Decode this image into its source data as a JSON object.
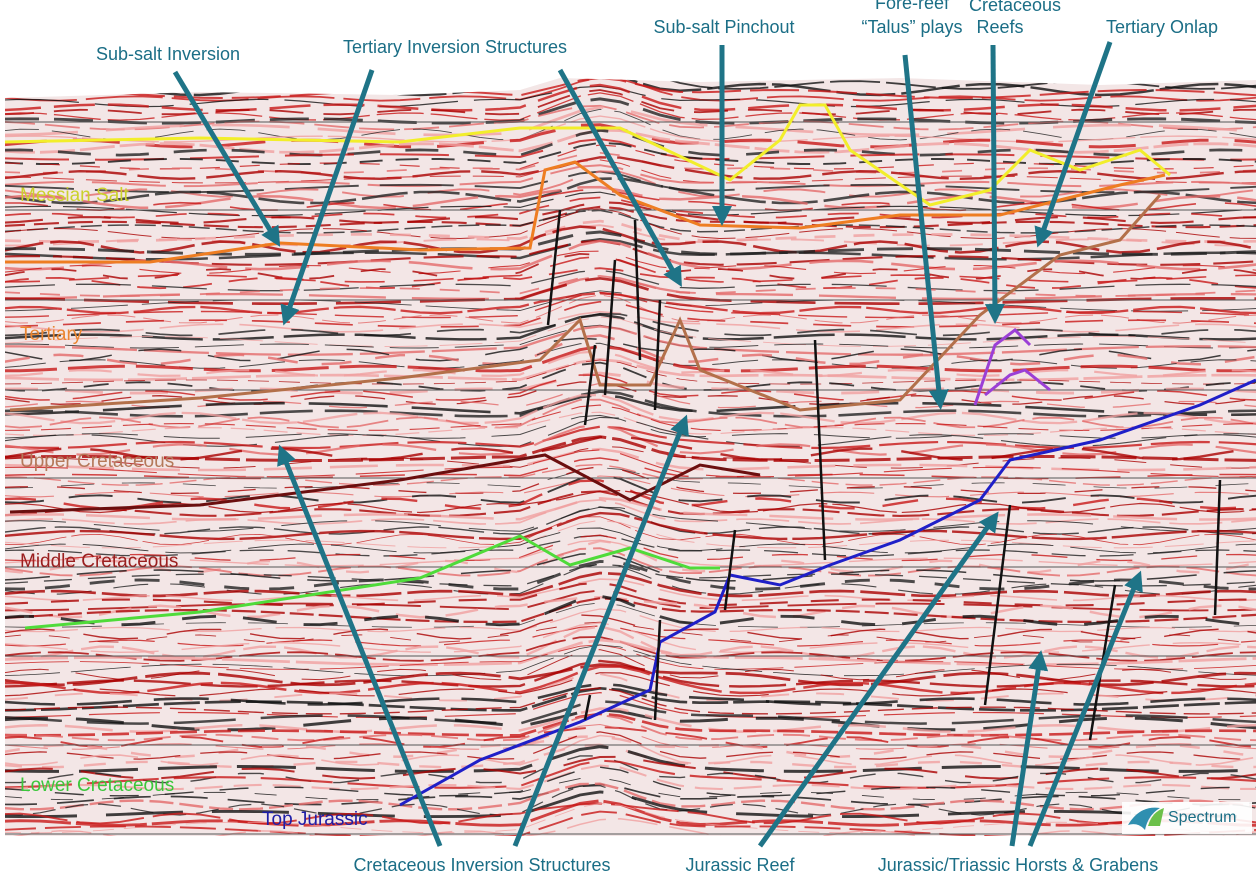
{
  "callouts_top": [
    {
      "lines": [
        "Sub-salt Inversion"
      ]
    },
    {
      "lines": [
        "Tertiary Inversion Structures"
      ]
    },
    {
      "lines": [
        "Sub-salt Pinchout"
      ]
    },
    {
      "lines": [
        "Fore-reef",
        "“Talus” plays"
      ]
    },
    {
      "lines": [
        "Cretaceous",
        "Reefs"
      ]
    },
    {
      "lines": [
        "Tertiary Onlap"
      ]
    }
  ],
  "horizon_labels": [
    "Messian Salt",
    "Tertiary",
    "Upper Cretaceous",
    "Middle Cretaceous",
    "Lower Cretaceous",
    "Top Jurassic"
  ],
  "callouts_bottom": [
    "Cretaceous Inversion Structures",
    "Jurassic Reef",
    "Jurassic/Triassic Horsts & Grabens"
  ],
  "logo": "Spectrum"
}
